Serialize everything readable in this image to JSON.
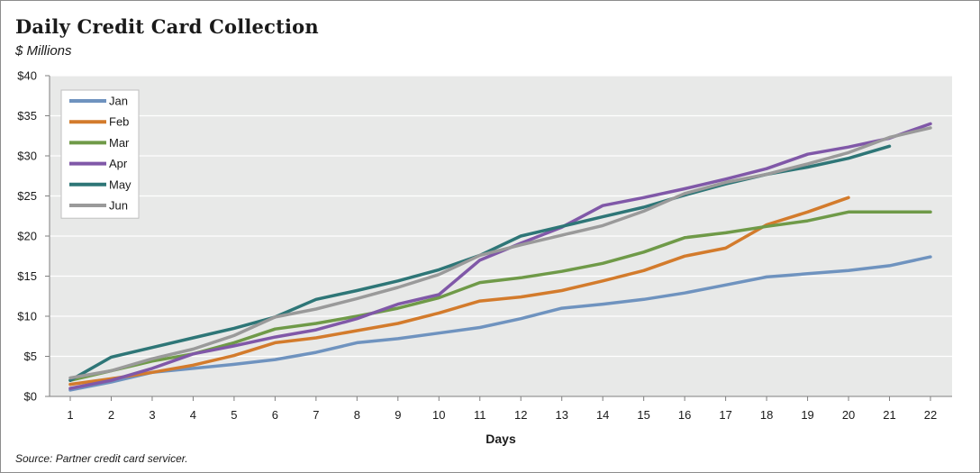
{
  "header": {
    "title": "Daily Credit Card Collection",
    "subtitle": "$ Millions"
  },
  "footer": {
    "source": "Source: Partner credit card servicer."
  },
  "chart_data": {
    "type": "line",
    "title": "Daily Credit Card Collection",
    "subtitle": "$ Millions",
    "xlabel": "Days",
    "ylabel": "",
    "x": [
      1,
      2,
      3,
      4,
      5,
      6,
      7,
      8,
      9,
      10,
      11,
      12,
      13,
      14,
      15,
      16,
      17,
      18,
      19,
      20,
      21,
      22
    ],
    "xlim": [
      1,
      22
    ],
    "ylim": [
      0,
      40
    ],
    "yticks": [
      0,
      5,
      10,
      15,
      20,
      25,
      30,
      35,
      40
    ],
    "ytick_labels": [
      "$0",
      "$5",
      "$10",
      "$15",
      "$20",
      "$25",
      "$30",
      "$35",
      "$40"
    ],
    "grid": "horizontal",
    "legend": "top-left",
    "plot_background": "#e8e9e8",
    "series": [
      {
        "name": "Jan",
        "color": "#6f93bf",
        "values": [
          0.8,
          1.8,
          3.0,
          3.5,
          4.0,
          4.6,
          5.5,
          6.7,
          7.2,
          7.9,
          8.6,
          9.7,
          11.0,
          11.5,
          12.1,
          12.9,
          13.9,
          14.9,
          15.3,
          15.7,
          16.3,
          17.4
        ]
      },
      {
        "name": "Feb",
        "color": "#d37b2c",
        "values": [
          1.5,
          2.2,
          3.0,
          3.9,
          5.1,
          6.7,
          7.3,
          8.2,
          9.1,
          10.4,
          11.9,
          12.4,
          13.2,
          14.4,
          15.7,
          17.5,
          18.5,
          21.4,
          23.0,
          24.8,
          null,
          null
        ]
      },
      {
        "name": "Mar",
        "color": "#6f9a48",
        "values": [
          2.0,
          3.2,
          4.4,
          5.3,
          6.7,
          8.4,
          9.1,
          10.0,
          11.0,
          12.3,
          14.2,
          14.8,
          15.6,
          16.6,
          18.0,
          19.8,
          20.4,
          21.2,
          21.9,
          23.0,
          23.0,
          23.0
        ]
      },
      {
        "name": "Apr",
        "color": "#8058a8",
        "values": [
          1.0,
          2.0,
          3.5,
          5.3,
          6.3,
          7.4,
          8.3,
          9.7,
          11.5,
          12.7,
          17.0,
          19.1,
          21.1,
          23.8,
          24.8,
          25.9,
          27.1,
          28.4,
          30.2,
          31.1,
          32.2,
          34.0
        ]
      },
      {
        "name": "May",
        "color": "#2e7677",
        "values": [
          2.0,
          4.9,
          6.1,
          7.3,
          8.5,
          9.9,
          12.1,
          13.2,
          14.4,
          15.8,
          17.6,
          20.0,
          21.2,
          22.4,
          23.6,
          25.1,
          26.5,
          27.7,
          28.6,
          29.7,
          31.2,
          null
        ]
      },
      {
        "name": "Jun",
        "color": "#9a9a9a",
        "values": [
          2.3,
          3.2,
          4.7,
          5.9,
          7.6,
          9.9,
          10.9,
          12.2,
          13.6,
          15.2,
          17.6,
          18.9,
          20.1,
          21.3,
          23.1,
          25.3,
          26.7,
          27.7,
          29.0,
          30.4,
          32.3,
          33.5
        ]
      }
    ]
  }
}
